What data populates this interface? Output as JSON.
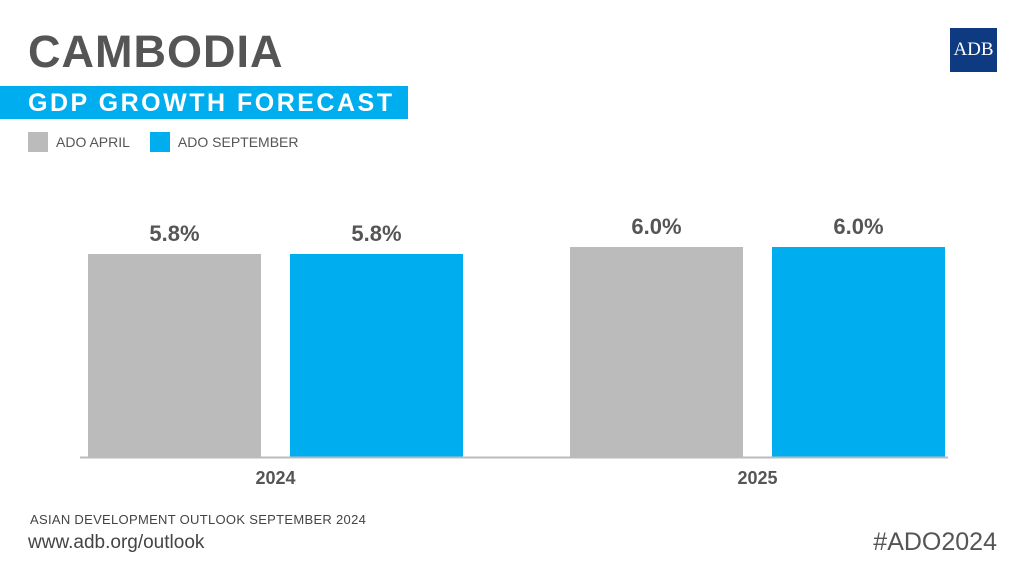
{
  "header": {
    "title": "CAMBODIA",
    "subtitle": "GDP GROWTH FORECAST",
    "logo_text": "ADB"
  },
  "colors": {
    "april": "#bbbbbb",
    "september": "#00aeef",
    "banner": "#00aeef",
    "logo_bg": "#0d3a80"
  },
  "chart_data": {
    "type": "bar",
    "title": "GDP GROWTH FORECAST",
    "categories": [
      "2024",
      "2025"
    ],
    "series": [
      {
        "name": "ADO APRIL",
        "values": [
          5.8,
          6.0
        ],
        "labels": [
          "5.8%",
          "6.0%"
        ]
      },
      {
        "name": "ADO SEPTEMBER",
        "values": [
          5.8,
          6.0
        ],
        "labels": [
          "5.8%",
          "6.0%"
        ]
      }
    ],
    "xlabel": "",
    "ylabel": "",
    "ylim": [
      0,
      6.5
    ],
    "legend": "top-left",
    "grid": false
  },
  "footer": {
    "source": "ASIAN DEVELOPMENT OUTLOOK SEPTEMBER 2024",
    "url": "www.adb.org/outlook",
    "hashtag": "#ADO2024"
  }
}
